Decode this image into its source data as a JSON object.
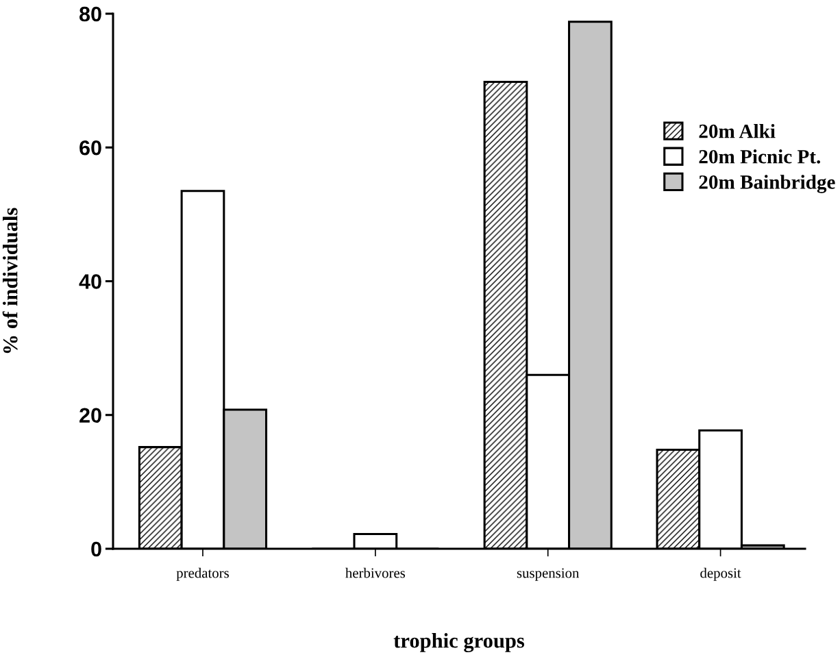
{
  "chart_data": {
    "type": "bar",
    "xlabel": "trophic groups",
    "ylabel": "% of individuals",
    "categories": [
      "predators",
      "herbivores",
      "suspension",
      "deposit"
    ],
    "series": [
      {
        "name": "20m Alki",
        "color": "#000000",
        "values": [
          15.2,
          0,
          69.8,
          14.8
        ]
      },
      {
        "name": "20m Picnic Pt.",
        "color": "#ffffff",
        "values": [
          53.5,
          2.2,
          26.0,
          17.7
        ]
      },
      {
        "name": "20m Bainbridge",
        "color": "#c4c4c4",
        "values": [
          20.8,
          0,
          78.8,
          0.5
        ]
      }
    ],
    "ylim": [
      0,
      80
    ],
    "yticks": [
      0,
      20,
      40,
      60,
      80
    ],
    "grid": false,
    "legend": "top right"
  }
}
